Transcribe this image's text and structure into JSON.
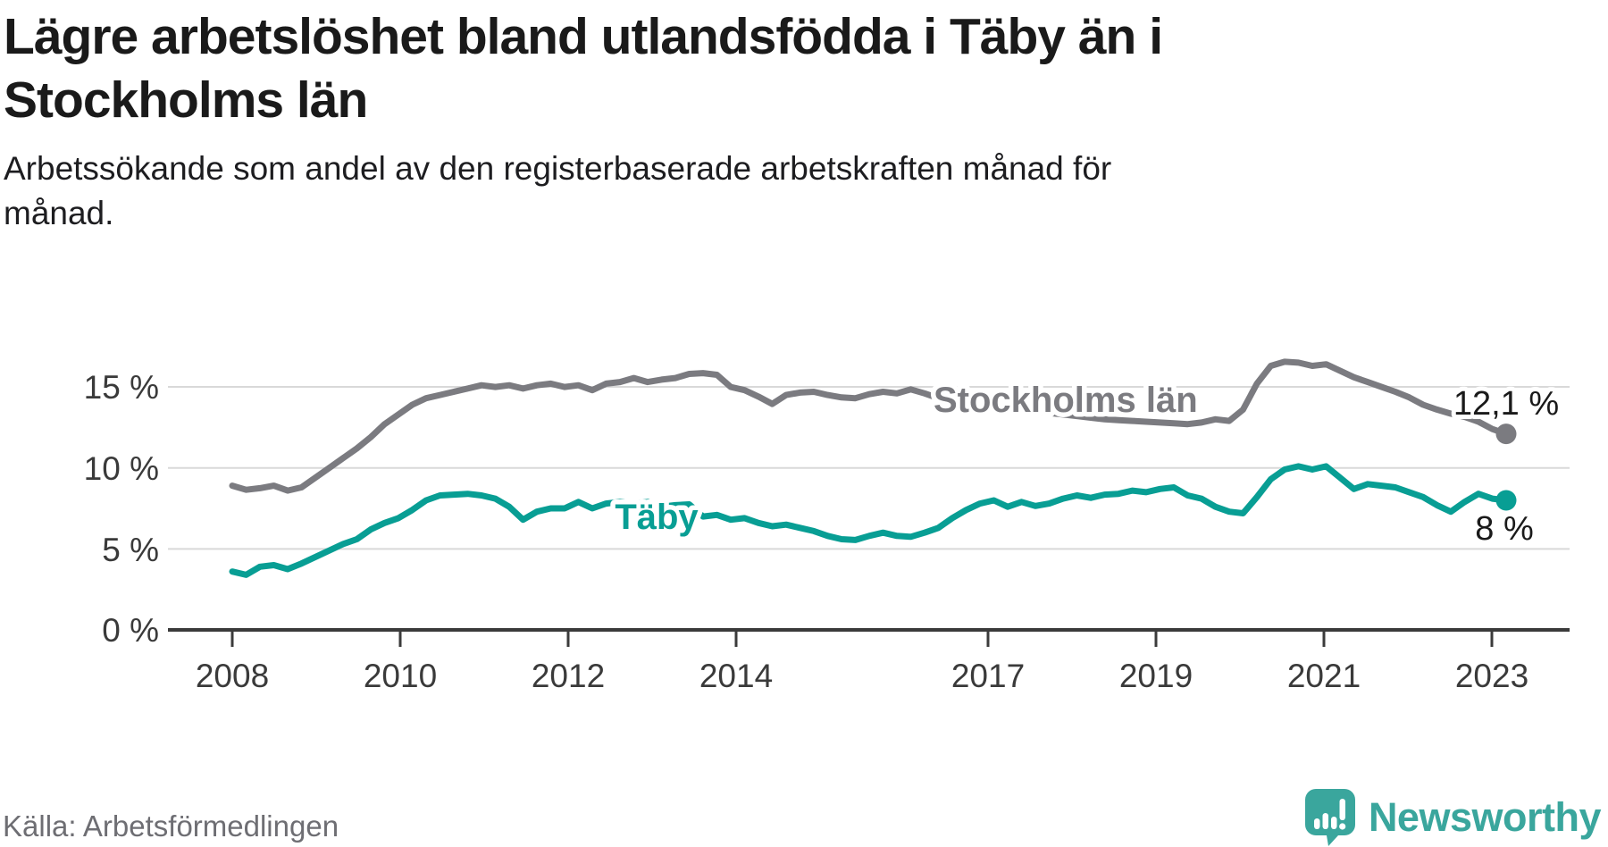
{
  "header": {
    "title_line1": "Lägre arbetslöshet bland utlandsfödda i Täby än i",
    "title_line2": "Stockholms län",
    "subtitle_line1": "Arbetssökande som andel av den registerbaserade arbetskraften månad för",
    "subtitle_line2": "månad."
  },
  "footer": {
    "source": "Källa: Arbetsförmedlingen",
    "brand": "Newsworthy"
  },
  "colors": {
    "stockholm_gray": "#7b7b80",
    "taby_teal": "#089e94",
    "grid": "#d9d9d9",
    "axis": "#3b3b3b",
    "brand_teal": "#3aa69d"
  },
  "chart_data": {
    "type": "line",
    "title": "Lägre arbetslöshet bland utlandsfödda i Täby än i Stockholms län",
    "subtitle": "Arbetssökande som andel av den registerbaserade arbetskraften månad för månad.",
    "xlabel": "",
    "ylabel": "",
    "ylim": [
      0,
      17.5
    ],
    "grid": "horizontal",
    "legend_position": "inline-labels",
    "x_start": 2008,
    "x_end": 2023.17,
    "x_ticks": [
      {
        "label": "2008",
        "year": 2008
      },
      {
        "label": "2010",
        "year": 2010
      },
      {
        "label": "2012",
        "year": 2012
      },
      {
        "label": "2014",
        "year": 2014
      },
      {
        "label": "2017",
        "year": 2017
      },
      {
        "label": "2019",
        "year": 2019
      },
      {
        "label": "2021",
        "year": 2021
      },
      {
        "label": "2023",
        "year": 2023
      }
    ],
    "y_ticks": [
      {
        "label": "0 %",
        "value": 0
      },
      {
        "label": "5 %",
        "value": 5
      },
      {
        "label": "10 %",
        "value": 10
      },
      {
        "label": "15 %",
        "value": 15
      }
    ],
    "y_gridlines": [
      5,
      10,
      15
    ],
    "series": [
      {
        "name": "Stockholms län",
        "color": "#7b7b80",
        "end_label": "12,1 %",
        "end_value": 12.1,
        "values": [
          8.9,
          8.65,
          8.75,
          8.9,
          8.6,
          8.8,
          9.4,
          10.0,
          10.6,
          11.2,
          11.9,
          12.7,
          13.3,
          13.9,
          14.3,
          14.5,
          14.7,
          14.9,
          15.1,
          15.0,
          15.1,
          14.9,
          15.1,
          15.2,
          15.0,
          15.1,
          14.8,
          15.2,
          15.3,
          15.55,
          15.3,
          15.45,
          15.55,
          15.8,
          15.85,
          15.75,
          15.0,
          14.8,
          14.4,
          13.95,
          14.5,
          14.65,
          14.7,
          14.5,
          14.35,
          14.3,
          14.55,
          14.7,
          14.6,
          14.85,
          14.6,
          14.3,
          14.15,
          14.0,
          13.9,
          13.8,
          13.7,
          13.6,
          13.5,
          13.4,
          13.3,
          13.2,
          13.1,
          13.0,
          12.95,
          12.9,
          12.85,
          12.8,
          12.75,
          12.7,
          12.8,
          13.0,
          12.9,
          13.6,
          15.2,
          16.3,
          16.55,
          16.5,
          16.3,
          16.4,
          16.0,
          15.6,
          15.3,
          15.0,
          14.7,
          14.35,
          13.9,
          13.6,
          13.35,
          13.15,
          12.85,
          12.4,
          12.1
        ]
      },
      {
        "name": "Täby",
        "color": "#089e94",
        "end_label": "8 %",
        "end_value": 8.0,
        "values": [
          3.6,
          3.4,
          3.9,
          4.0,
          3.75,
          4.1,
          4.5,
          4.9,
          5.3,
          5.6,
          6.2,
          6.6,
          6.9,
          7.4,
          8.0,
          8.3,
          8.35,
          8.4,
          8.3,
          8.1,
          7.6,
          6.8,
          7.3,
          7.5,
          7.5,
          7.9,
          7.5,
          7.8,
          7.9,
          7.8,
          7.9,
          7.6,
          7.7,
          7.75,
          7.0,
          7.1,
          6.8,
          6.9,
          6.6,
          6.4,
          6.5,
          6.3,
          6.1,
          5.8,
          5.6,
          5.55,
          5.8,
          6.0,
          5.8,
          5.75,
          6.0,
          6.3,
          6.9,
          7.4,
          7.8,
          8.0,
          7.6,
          7.9,
          7.65,
          7.8,
          8.1,
          8.3,
          8.15,
          8.35,
          8.4,
          8.6,
          8.5,
          8.7,
          8.8,
          8.3,
          8.1,
          7.6,
          7.3,
          7.2,
          8.2,
          9.3,
          9.9,
          10.1,
          9.9,
          10.1,
          9.4,
          8.7,
          9.0,
          8.9,
          8.8,
          8.5,
          8.2,
          7.7,
          7.3,
          7.9,
          8.4,
          8.1,
          8.0
        ]
      }
    ]
  }
}
